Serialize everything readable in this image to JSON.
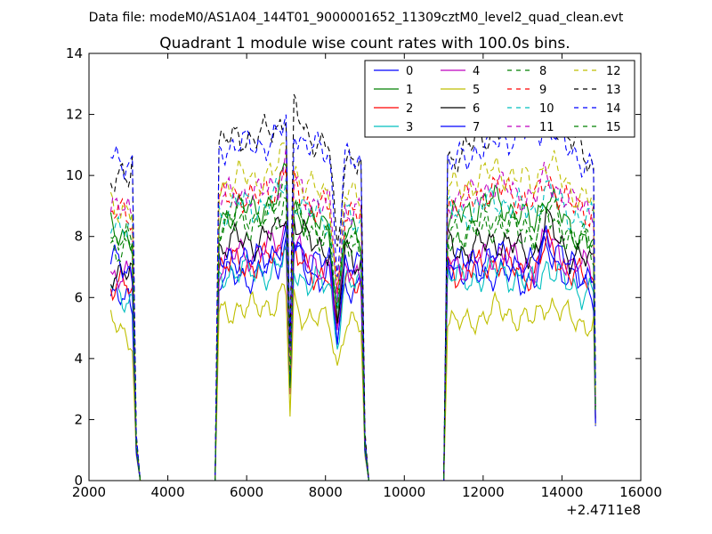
{
  "figure": {
    "suptitle": "Data file: modeM0/AS1A04_144T01_9000001652_11309cztM0_level2_quad_clean.evt",
    "title": "Quadrant 1 module wise count rates with 100.0s bins.",
    "x_offset_label": "+2.4711e8"
  },
  "chart_data": {
    "type": "line",
    "title": "Quadrant 1 module wise count rates with 100.0s bins.",
    "xlabel": "",
    "ylabel": "",
    "xlim": [
      2000,
      16000
    ],
    "ylim": [
      0,
      14
    ],
    "xticks": [
      2000,
      4000,
      6000,
      8000,
      10000,
      12000,
      14000,
      16000
    ],
    "yticks": [
      0,
      2,
      4,
      6,
      8,
      10,
      12,
      14
    ],
    "grid": false,
    "legend": {
      "placement": "top-right",
      "columns": 4
    },
    "breakpoints_x": [
      2550,
      3000,
      3100,
      3200,
      3300,
      5200,
      5300,
      5800,
      6200,
      6800,
      7000,
      7100,
      7200,
      7500,
      8100,
      8300,
      8500,
      8900,
      9000,
      9100,
      11000,
      11100,
      11500,
      12300,
      13300,
      13600,
      14200,
      14800,
      14850
    ],
    "series": [
      {
        "name": "0",
        "color": "#0000ff",
        "dash": false,
        "levels": [
          6.1,
          5.8,
          5.4,
          1.0,
          0,
          0,
          6.5,
          6.8,
          6.6,
          7.2,
          7.7,
          3.0,
          7.6,
          6.8,
          6.6,
          4.5,
          6.5,
          6.3,
          1.0,
          0,
          0,
          7.3,
          6.7,
          6.8,
          6.5,
          7.6,
          6.6,
          6.2,
          1.9
        ]
      },
      {
        "name": "1",
        "color": "#008000",
        "dash": false,
        "levels": [
          8.2,
          8.1,
          8.0,
          1.0,
          0,
          0,
          8.5,
          9.0,
          8.8,
          9.3,
          10.2,
          3.0,
          9.0,
          8.5,
          8.3,
          5.0,
          8.2,
          7.8,
          1.0,
          0,
          0,
          8.4,
          8.8,
          9.2,
          8.4,
          9.5,
          8.2,
          7.8,
          2.2
        ]
      },
      {
        "name": "2",
        "color": "#ff0000",
        "dash": false,
        "levels": [
          6.5,
          6.3,
          6.0,
          1.0,
          0,
          0,
          6.9,
          7.2,
          7.0,
          7.5,
          8.1,
          3.0,
          7.4,
          6.9,
          6.7,
          4.7,
          6.8,
          6.6,
          1.0,
          0,
          0,
          7.0,
          6.8,
          7.2,
          6.7,
          7.8,
          6.8,
          6.5,
          2.0
        ]
      },
      {
        "name": "3",
        "color": "#00bfbf",
        "dash": false,
        "levels": [
          6.3,
          6.0,
          5.9,
          1.0,
          0,
          0,
          6.6,
          7.0,
          6.7,
          7.0,
          7.4,
          2.9,
          7.0,
          6.5,
          6.4,
          4.6,
          6.5,
          6.3,
          1.0,
          0,
          0,
          6.8,
          6.5,
          6.9,
          6.4,
          7.1,
          6.3,
          6.2,
          1.9
        ]
      },
      {
        "name": "4",
        "color": "#bf00bf",
        "dash": false,
        "levels": [
          6.8,
          6.6,
          6.5,
          1.0,
          0,
          0,
          7.0,
          7.5,
          7.4,
          7.8,
          8.3,
          3.0,
          7.7,
          7.2,
          7.0,
          4.8,
          7.1,
          6.8,
          1.0,
          0,
          0,
          7.3,
          7.0,
          7.5,
          7.0,
          8.0,
          7.1,
          6.9,
          2.0
        ]
      },
      {
        "name": "5",
        "color": "#bfbf00",
        "dash": false,
        "levels": [
          5.2,
          4.7,
          4.6,
          0.8,
          0,
          0,
          5.4,
          5.7,
          5.6,
          5.9,
          6.2,
          2.1,
          5.8,
          5.4,
          5.2,
          3.7,
          5.2,
          5.0,
          0.8,
          0,
          0,
          5.3,
          5.1,
          5.6,
          5.2,
          5.9,
          5.3,
          5.1,
          1.7
        ]
      },
      {
        "name": "6",
        "color": "#000000",
        "dash": false,
        "levels": [
          6.9,
          6.8,
          6.7,
          1.0,
          0,
          0,
          7.6,
          7.9,
          7.8,
          8.2,
          9.0,
          3.1,
          8.5,
          7.9,
          7.6,
          5.0,
          7.5,
          7.2,
          1.0,
          0,
          0,
          7.8,
          7.5,
          7.9,
          7.4,
          8.5,
          7.4,
          7.1,
          2.1
        ]
      },
      {
        "name": "7",
        "color": "#0000ff",
        "dash": false,
        "levels": [
          7.2,
          6.9,
          6.7,
          1.0,
          0,
          0,
          7.1,
          7.4,
          7.2,
          7.6,
          8.0,
          3.0,
          7.9,
          7.3,
          7.1,
          4.9,
          7.2,
          6.9,
          1.0,
          0,
          0,
          7.5,
          7.1,
          7.4,
          7.0,
          8.1,
          7.0,
          6.7,
          2.0
        ]
      },
      {
        "name": "8",
        "color": "#008000",
        "dash": true,
        "levels": [
          7.7,
          7.6,
          7.6,
          1.2,
          0,
          0,
          8.4,
          8.8,
          8.6,
          9.0,
          9.6,
          3.4,
          9.0,
          8.4,
          8.2,
          5.6,
          8.0,
          7.8,
          1.2,
          0,
          0,
          8.0,
          8.2,
          8.6,
          8.1,
          9.0,
          8.1,
          7.8,
          2.4
        ]
      },
      {
        "name": "9",
        "color": "#ff0000",
        "dash": true,
        "levels": [
          8.8,
          8.7,
          8.6,
          1.3,
          0,
          0,
          9.1,
          9.4,
          9.2,
          9.7,
          10.4,
          3.6,
          9.7,
          9.1,
          8.9,
          6.0,
          8.9,
          8.7,
          1.3,
          0,
          0,
          9.1,
          9.1,
          9.6,
          9.1,
          9.9,
          9.0,
          8.8,
          2.6
        ]
      },
      {
        "name": "10",
        "color": "#00bfbf",
        "dash": true,
        "levels": [
          8.5,
          8.4,
          8.3,
          1.2,
          0,
          0,
          8.8,
          9.1,
          8.9,
          9.3,
          9.9,
          3.5,
          9.3,
          8.8,
          8.6,
          5.8,
          8.6,
          8.4,
          1.2,
          0,
          0,
          8.8,
          8.7,
          9.2,
          8.8,
          9.6,
          8.7,
          8.5,
          2.5
        ]
      },
      {
        "name": "11",
        "color": "#bf00bf",
        "dash": true,
        "levels": [
          8.9,
          8.8,
          8.7,
          1.3,
          0,
          0,
          9.2,
          9.5,
          9.3,
          9.8,
          10.5,
          3.6,
          9.8,
          9.2,
          9.0,
          6.1,
          9.0,
          8.8,
          1.3,
          0,
          0,
          9.2,
          9.2,
          9.7,
          9.2,
          10.0,
          9.1,
          8.9,
          2.6
        ]
      },
      {
        "name": "12",
        "color": "#bfbf00",
        "dash": true,
        "levels": [
          9.0,
          8.9,
          8.9,
          1.3,
          0,
          0,
          9.6,
          10.0,
          9.8,
          10.3,
          10.9,
          3.8,
          10.2,
          9.6,
          9.4,
          6.3,
          9.4,
          9.2,
          1.3,
          0,
          0,
          9.5,
          9.6,
          10.2,
          9.7,
          10.6,
          9.5,
          9.2,
          2.8
        ]
      },
      {
        "name": "13",
        "color": "#000000",
        "dash": true,
        "levels": [
          9.9,
          9.8,
          10.4,
          1.5,
          0,
          0,
          11.0,
          11.3,
          11.2,
          11.6,
          12.1,
          4.2,
          12.3,
          11.3,
          11.0,
          7.2,
          10.7,
          10.5,
          1.5,
          0,
          0,
          10.5,
          10.8,
          11.5,
          12.0,
          12.2,
          11.2,
          10.3,
          3.2
        ]
      },
      {
        "name": "14",
        "color": "#0000ff",
        "dash": true,
        "levels": [
          10.6,
          10.5,
          10.3,
          1.5,
          0,
          0,
          10.8,
          11.1,
          10.9,
          11.3,
          11.7,
          4.1,
          11.6,
          11.0,
          10.7,
          7.0,
          10.6,
          10.2,
          1.5,
          0,
          0,
          10.3,
          10.6,
          11.1,
          11.5,
          11.6,
          10.9,
          10.1,
          3.1
        ]
      },
      {
        "name": "15",
        "color": "#008000",
        "dash": true,
        "levels": [
          7.9,
          7.8,
          7.7,
          1.2,
          0,
          0,
          8.2,
          8.5,
          8.4,
          8.7,
          9.2,
          3.3,
          8.7,
          8.2,
          8.0,
          5.5,
          7.9,
          7.7,
          1.2,
          0,
          0,
          7.9,
          8.0,
          8.4,
          8.0,
          8.7,
          7.9,
          7.6,
          2.4
        ]
      }
    ]
  }
}
